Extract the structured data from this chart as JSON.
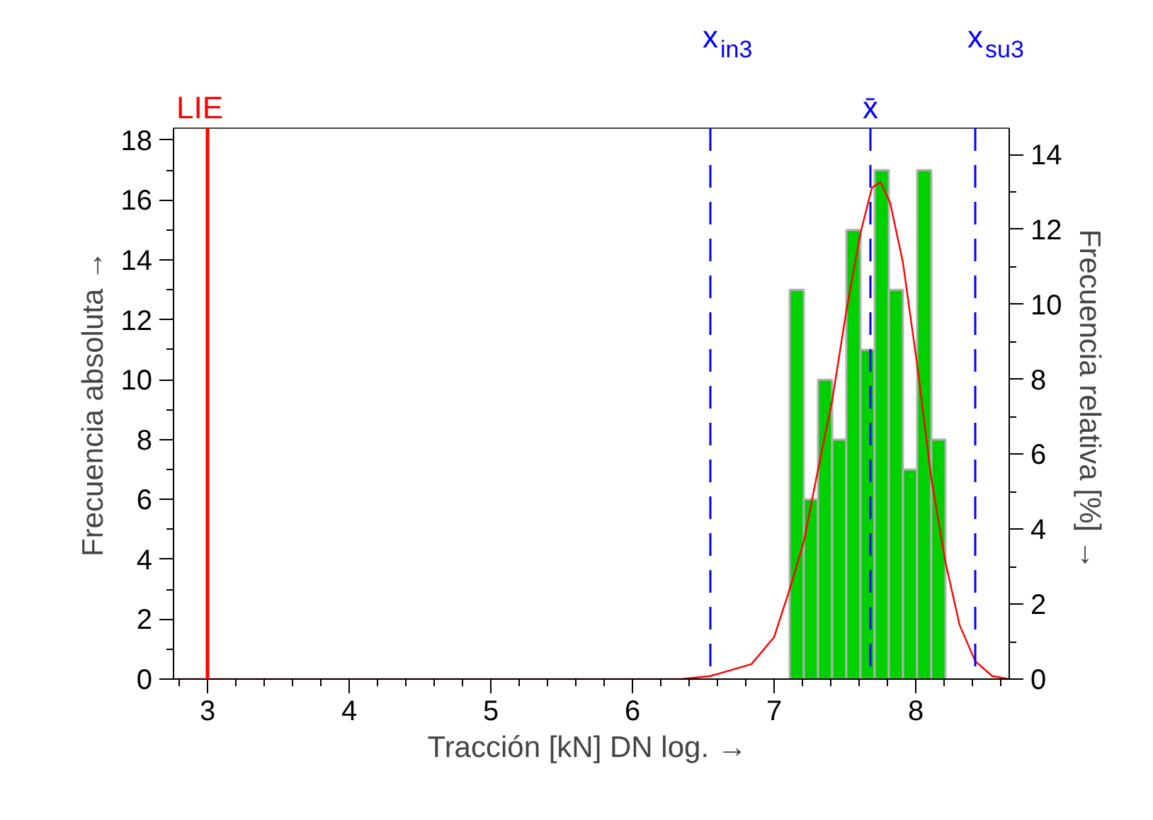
{
  "chart_data": {
    "type": "histogram",
    "xlabel": "Tracción [kN]  DN log. →",
    "ylabel": "Frecuencia absoluta →",
    "y2label": "Frecuencia relativa  [%] →",
    "bins": [
      7.11,
      7.21,
      7.31,
      7.41,
      7.51,
      7.61,
      7.71,
      7.81,
      7.91,
      8.01,
      8.11,
      8.21
    ],
    "values": [
      13,
      6,
      10,
      8,
      15,
      11,
      17,
      13,
      7,
      17,
      8
    ],
    "color": "#00d000",
    "series": [
      {
        "type": "line",
        "color": "#ff0000",
        "x": [
          2.76,
          6.34,
          6.55,
          6.84,
          7.0,
          7.11,
          7.21,
          7.31,
          7.41,
          7.51,
          7.61,
          7.69,
          7.75,
          7.82,
          7.91,
          8.01,
          8.11,
          8.21,
          8.31,
          8.42,
          8.54,
          8.66
        ],
        "values": [
          0,
          0,
          0.1,
          0.5,
          1.4,
          3.0,
          4.6,
          7.0,
          9.3,
          12.3,
          14.9,
          16.4,
          16.6,
          15.9,
          13.9,
          10.5,
          6.7,
          3.9,
          1.8,
          0.6,
          0.1,
          0
        ]
      }
    ],
    "xlim": [
      2.76,
      8.66
    ],
    "xticks": [
      3,
      4,
      5,
      6,
      7,
      8
    ],
    "ylim": [
      0,
      18.4
    ],
    "yticks": [
      0,
      2,
      4,
      6,
      8,
      10,
      12,
      14,
      16,
      18
    ],
    "y2lim": [
      0,
      14.7
    ],
    "y2ticks": [
      0,
      2,
      4,
      6,
      8,
      10,
      12,
      14
    ],
    "ref_lines": [
      {
        "axis": "x",
        "value": 3,
        "label": "LIE",
        "color": "#ff0000",
        "line_style": "solid"
      },
      {
        "axis": "x",
        "value": 6.55,
        "label": "x$_{in3}$",
        "color": "#0000ff",
        "line_style": "dashed"
      },
      {
        "axis": "x",
        "value": 7.68,
        "label": "x̄",
        "color": "#0000ff",
        "line_style": "dashed"
      },
      {
        "axis": "x",
        "value": 8.42,
        "label": "x$_{su3}$",
        "color": "#0000ff",
        "line_style": "dashed"
      }
    ],
    "grid": false
  }
}
